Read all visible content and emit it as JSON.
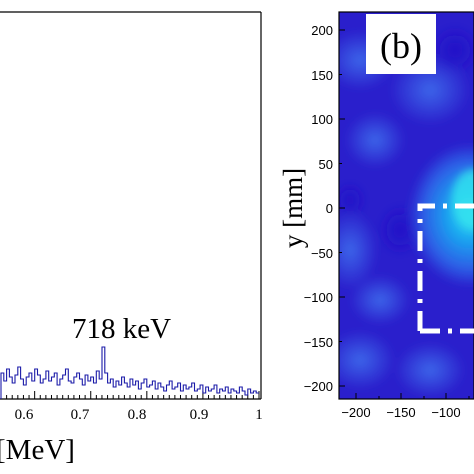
{
  "left_panel": {
    "annotation": "718 keV",
    "xlabel_fragment": "[MeV]",
    "xticks": [
      "0.6",
      "0.7",
      "0.8",
      "0.9",
      "1"
    ],
    "tick_values": [
      0.6,
      0.7,
      0.8,
      0.9,
      1.0
    ]
  },
  "right_panel": {
    "panel_label": "(b)",
    "ylabel": "y [mm]",
    "yticks": [
      "200",
      "150",
      "100",
      "50",
      "0",
      "−50",
      "−100",
      "−150",
      "−200"
    ],
    "xticks": [
      "−200",
      "−150",
      "−100"
    ]
  },
  "chart_data": [
    {
      "type": "line",
      "title": "",
      "xlabel": "[MeV]",
      "ylabel": "",
      "xlim": [
        0.54,
        1.0
      ],
      "annotations": [
        "718 keV"
      ],
      "series": [
        {
          "color": "#1a1aa8",
          "x": [
            0.54,
            0.545,
            0.55,
            0.555,
            0.56,
            0.565,
            0.57,
            0.575,
            0.58,
            0.585,
            0.59,
            0.595,
            0.6,
            0.605,
            0.61,
            0.615,
            0.62,
            0.625,
            0.63,
            0.635,
            0.64,
            0.645,
            0.65,
            0.655,
            0.66,
            0.665,
            0.67,
            0.675,
            0.68,
            0.685,
            0.69,
            0.695,
            0.7,
            0.705,
            0.71,
            0.715,
            0.72,
            0.725,
            0.73,
            0.735,
            0.74,
            0.745,
            0.75,
            0.755,
            0.76,
            0.765,
            0.77,
            0.775,
            0.78,
            0.785,
            0.79,
            0.795,
            0.8,
            0.805,
            0.81,
            0.815,
            0.82,
            0.825,
            0.83,
            0.835,
            0.84,
            0.845,
            0.85,
            0.855,
            0.86,
            0.865,
            0.87,
            0.875,
            0.88,
            0.885,
            0.89,
            0.895,
            0.9,
            0.905,
            0.91,
            0.915,
            0.92,
            0.925,
            0.93,
            0.935,
            0.94,
            0.945,
            0.95,
            0.955,
            0.96,
            0.965,
            0.97,
            0.975,
            0.98,
            0.985,
            0.99,
            0.995
          ],
          "y": [
            13,
            9,
            15,
            11,
            8,
            12,
            16,
            10,
            7,
            11,
            13,
            9,
            15,
            12,
            8,
            10,
            14,
            9,
            11,
            13,
            7,
            10,
            12,
            15,
            9,
            8,
            11,
            13,
            10,
            7,
            12,
            9,
            11,
            8,
            14,
            10,
            26,
            13,
            8,
            10,
            6,
            9,
            7,
            11,
            8,
            6,
            10,
            7,
            9,
            5,
            8,
            10,
            6,
            7,
            9,
            5,
            8,
            6,
            4,
            7,
            9,
            5,
            6,
            8,
            4,
            7,
            5,
            6,
            8,
            4,
            5,
            7,
            3,
            6,
            4,
            5,
            7,
            3,
            5,
            4,
            6,
            3,
            5,
            4,
            3,
            6,
            4,
            2,
            5,
            3,
            4,
            3
          ]
        }
      ]
    },
    {
      "type": "heatmap",
      "title": "(b)",
      "xlabel": "",
      "ylabel": "y [mm]",
      "xlim": [
        -220,
        220
      ],
      "ylim": [
        -220,
        220
      ],
      "colormap": [
        "#2a1fd0",
        "#2e50e8",
        "#1b9ff0",
        "#27d8f0"
      ],
      "overlay": "white dash-dot rectangle"
    }
  ]
}
